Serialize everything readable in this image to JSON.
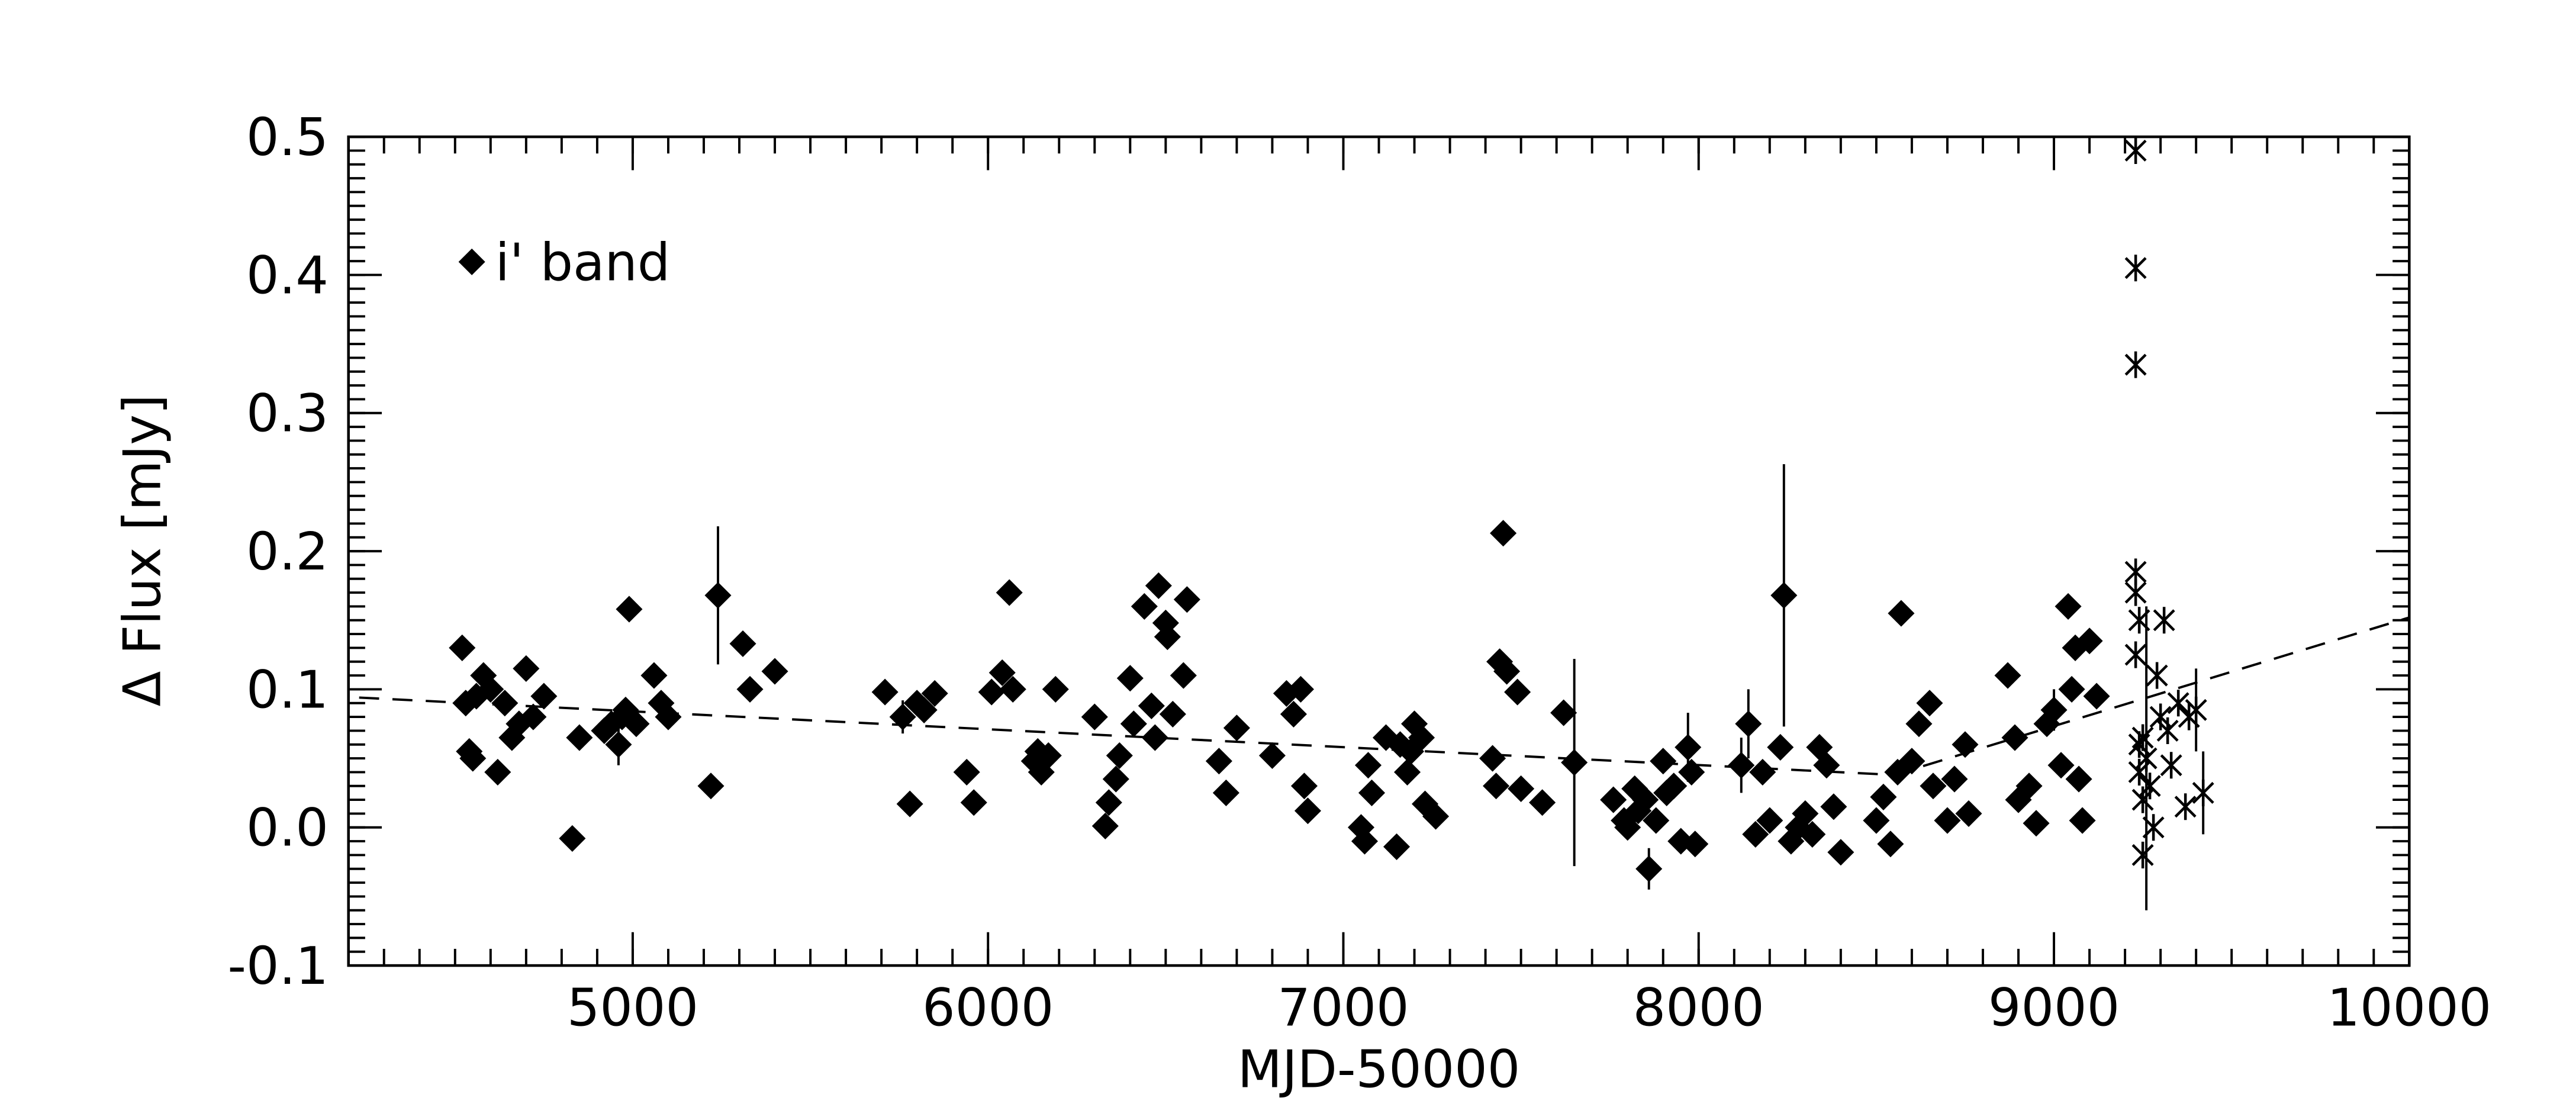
{
  "chart_data": {
    "type": "scatter",
    "xlabel": "MJD-50000",
    "ylabel": "Δ Flux [mJy]",
    "xlim": [
      4200,
      10000
    ],
    "ylim": [
      -0.1,
      0.5
    ],
    "xticks": [
      5000,
      6000,
      7000,
      8000,
      9000,
      10000
    ],
    "yticks": [
      -0.1,
      {
        "value": 0,
        "label": "0.0"
      },
      0.1,
      0.2,
      0.3,
      0.4,
      0.5
    ],
    "legend": "upper left",
    "series": [
      {
        "name": "i' band",
        "color": "#000000",
        "marker": "diamond",
        "x": [
          4520,
          4530,
          4540,
          4550,
          4560,
          4580,
          4600,
          4620,
          4640,
          4660,
          4680,
          4700,
          4720,
          4750,
          4830,
          4850,
          4920,
          4940,
          4960,
          4970,
          4980,
          4990,
          5010,
          5060,
          5080,
          5100,
          5220,
          5240,
          5310,
          5330,
          5400,
          5710,
          5760,
          5780,
          5800,
          5820,
          5850,
          5940,
          5960,
          6010,
          6040,
          6060,
          6070,
          6130,
          6140,
          6150,
          6170,
          6190,
          6300,
          6330,
          6340,
          6360,
          6370,
          6400,
          6410,
          6440,
          6460,
          6470,
          6480,
          6500,
          6505,
          6520,
          6550,
          6560,
          6650,
          6670,
          6700,
          6800,
          6840,
          6860,
          6880,
          6890,
          6900,
          7050,
          7060,
          7070,
          7080,
          7120,
          7150,
          7160,
          7180,
          7190,
          7200,
          7220,
          7230,
          7260,
          7420,
          7430,
          7440,
          7450,
          7460,
          7490,
          7500,
          7560,
          7620,
          7650,
          7760,
          7790,
          7800,
          7820,
          7830,
          7850,
          7860,
          7880,
          7900,
          7910,
          7930,
          7950,
          7970,
          7980,
          7990,
          8120,
          8140,
          8160,
          8180,
          8200,
          8230,
          8240,
          8260,
          8280,
          8300,
          8320,
          8340,
          8360,
          8380,
          8400,
          8500,
          8520,
          8540,
          8560,
          8570,
          8600,
          8620,
          8650,
          8660,
          8700,
          8720,
          8750,
          8760,
          8870,
          8890,
          8900,
          8930,
          8950,
          8980,
          9000,
          9020,
          9040,
          9050,
          9060,
          9070,
          9080,
          9100,
          9120
        ],
        "values": [
          0.13,
          0.09,
          0.055,
          0.05,
          0.095,
          0.11,
          0.1,
          0.04,
          0.09,
          0.065,
          0.075,
          0.115,
          0.08,
          0.095,
          -0.008,
          0.065,
          0.07,
          0.075,
          0.06,
          0.08,
          0.085,
          0.158,
          0.075,
          0.11,
          0.09,
          0.08,
          0.03,
          0.168,
          0.133,
          0.1,
          0.113,
          0.098,
          0.08,
          0.017,
          0.09,
          0.085,
          0.097,
          0.04,
          0.018,
          0.098,
          0.112,
          0.17,
          0.1,
          0.048,
          0.055,
          0.04,
          0.052,
          0.1,
          0.08,
          0.001,
          0.018,
          0.035,
          0.052,
          0.108,
          0.075,
          0.16,
          0.088,
          0.065,
          0.175,
          0.148,
          0.138,
          0.082,
          0.11,
          0.165,
          0.048,
          0.025,
          0.072,
          0.052,
          0.097,
          0.082,
          0.1,
          0.03,
          0.012,
          0.0,
          -0.01,
          0.045,
          0.025,
          0.065,
          -0.014,
          0.06,
          0.04,
          0.055,
          0.075,
          0.065,
          0.017,
          0.008,
          0.05,
          0.03,
          0.12,
          0.213,
          0.113,
          0.098,
          0.028,
          0.018,
          0.083,
          0.047,
          0.02,
          0.005,
          0.0,
          0.028,
          0.012,
          0.02,
          -0.03,
          0.005,
          0.048,
          0.025,
          0.03,
          -0.01,
          0.058,
          0.04,
          -0.012,
          0.045,
          0.075,
          -0.005,
          0.04,
          0.005,
          0.058,
          0.168,
          -0.01,
          0.0,
          0.01,
          -0.005,
          0.058,
          0.045,
          0.015,
          -0.018,
          0.005,
          0.022,
          -0.012,
          0.04,
          0.155,
          0.048,
          0.075,
          0.09,
          0.03,
          0.005,
          0.035,
          0.06,
          0.01,
          0.11,
          0.065,
          0.02,
          0.03,
          0.003,
          0.075,
          0.085,
          0.045,
          0.16,
          0.1,
          0.13,
          0.035,
          0.005,
          0.135,
          0.095
        ],
        "errors": [
          null,
          null,
          null,
          null,
          null,
          null,
          null,
          null,
          null,
          null,
          null,
          null,
          null,
          null,
          null,
          null,
          null,
          null,
          0.015,
          null,
          null,
          null,
          null,
          null,
          null,
          null,
          null,
          0.05,
          null,
          null,
          null,
          null,
          0.012,
          null,
          null,
          null,
          null,
          null,
          null,
          null,
          null,
          null,
          null,
          null,
          null,
          null,
          null,
          null,
          null,
          null,
          null,
          null,
          null,
          null,
          null,
          null,
          null,
          null,
          null,
          null,
          null,
          null,
          null,
          null,
          null,
          null,
          null,
          null,
          null,
          null,
          null,
          null,
          null,
          null,
          null,
          null,
          null,
          null,
          null,
          null,
          null,
          null,
          null,
          null,
          null,
          null,
          null,
          null,
          null,
          null,
          null,
          null,
          null,
          null,
          null,
          0.075,
          null,
          null,
          null,
          null,
          null,
          null,
          0.015,
          null,
          null,
          null,
          null,
          null,
          0.025,
          null,
          null,
          0.02,
          0.025,
          null,
          null,
          null,
          null,
          0.095,
          null,
          null,
          null,
          null,
          null,
          null,
          null,
          null,
          null,
          null,
          null,
          null,
          null,
          null,
          null,
          null,
          null,
          null,
          null,
          null,
          null,
          null,
          null,
          null,
          null,
          null,
          null,
          0.015,
          null,
          null,
          null,
          null,
          null,
          null,
          null,
          null
        ]
      },
      {
        "color": "#000000",
        "marker": "asterisk",
        "x": [
          9230,
          9230,
          9230,
          9230,
          9230,
          9240,
          9230,
          9240,
          9240,
          9250,
          9250,
          9260,
          9270,
          9280,
          9300,
          9310,
          9320,
          9330,
          9350,
          9370,
          9380,
          9400,
          9420,
          9290,
          9250
        ],
        "values": [
          0.49,
          0.405,
          0.335,
          0.185,
          0.17,
          0.15,
          0.125,
          0.06,
          0.04,
          0.02,
          -0.02,
          0.05,
          0.03,
          0.0,
          0.08,
          0.15,
          0.07,
          0.045,
          0.09,
          0.015,
          0.08,
          0.085,
          0.025,
          0.11,
          0.065
        ],
        "errors": [
          null,
          null,
          null,
          null,
          null,
          null,
          null,
          null,
          null,
          null,
          null,
          0.11,
          null,
          null,
          null,
          null,
          null,
          null,
          null,
          null,
          null,
          0.03,
          0.03,
          null,
          null
        ]
      },
      {
        "color": "#000000",
        "style": "dashed",
        "x": [
          4230,
          8550,
          10000
        ],
        "values": [
          0.094,
          0.038,
          0.152
        ]
      }
    ]
  }
}
